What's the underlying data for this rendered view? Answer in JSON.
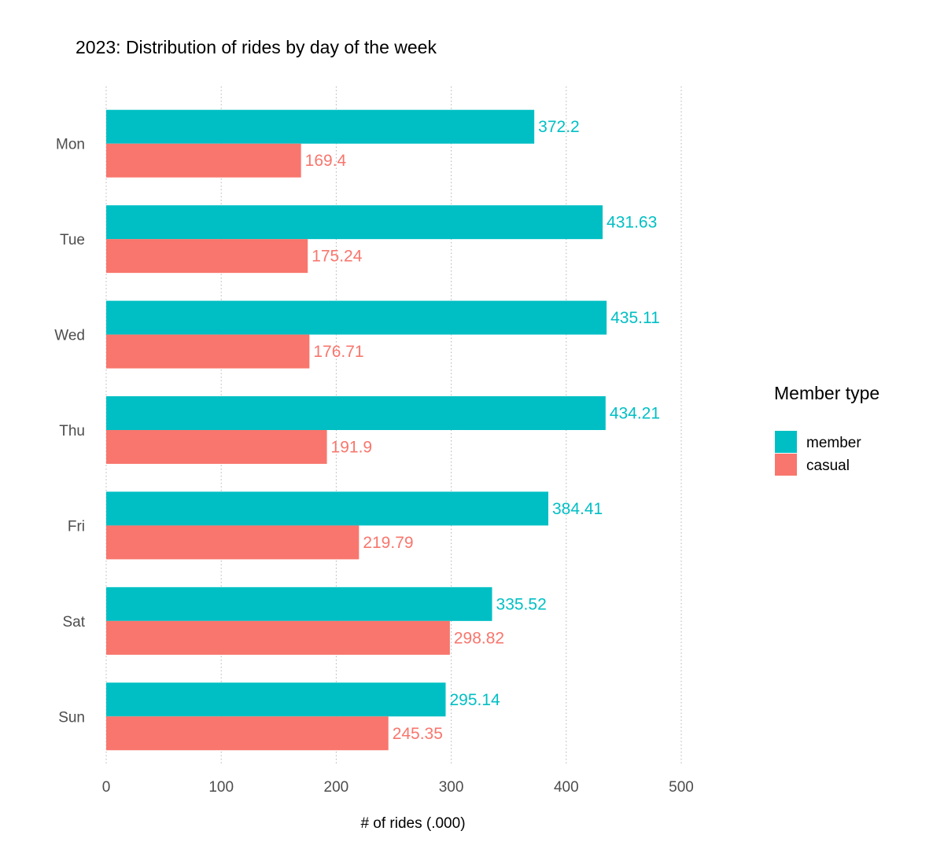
{
  "chart_data": {
    "type": "bar",
    "orientation": "horizontal",
    "title": "2023: Distribution of rides by day of the week",
    "xlabel": "# of rides (.000)",
    "ylabel": "",
    "xlim": [
      0,
      500
    ],
    "xticks": [
      "0",
      "100",
      "200",
      "300",
      "400",
      "500"
    ],
    "grid": "vertical-dotted",
    "legend_position": "right",
    "legend_title": "Member type",
    "categories": [
      "Mon",
      "Tue",
      "Wed",
      "Thu",
      "Fri",
      "Sat",
      "Sun"
    ],
    "series": [
      {
        "name": "member",
        "color": "#00BFC4",
        "values": [
          372.2,
          431.63,
          435.11,
          434.21,
          384.41,
          335.52,
          295.14
        ],
        "labels": [
          "372.2",
          "431.63",
          "435.11",
          "434.21",
          "384.41",
          "335.52",
          "295.14"
        ]
      },
      {
        "name": "casual",
        "color": "#F8766D",
        "values": [
          169.4,
          175.24,
          176.71,
          191.9,
          219.79,
          298.82,
          245.35
        ],
        "labels": [
          "169.4",
          "175.24",
          "176.71",
          "191.9",
          "219.79",
          "298.82",
          "245.35"
        ]
      }
    ]
  }
}
